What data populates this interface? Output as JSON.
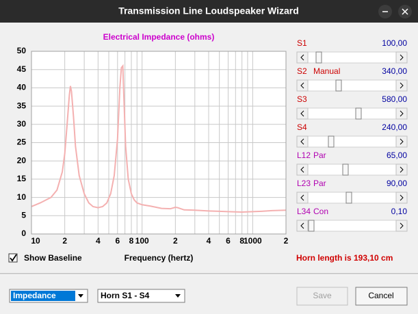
{
  "window": {
    "title": "Transmission Line Loudspeaker Wizard"
  },
  "chart_data": {
    "type": "line",
    "title": "Electrical Impedance (ohms)",
    "x_label": "Frequency (hertz)",
    "x": [
      10,
      12,
      15,
      17,
      19,
      20,
      21,
      22,
      22.5,
      23,
      24,
      25,
      27,
      30,
      33,
      36,
      40,
      44,
      48,
      52,
      56,
      60,
      63,
      65,
      67,
      68,
      71,
      75,
      80,
      85,
      90,
      100,
      120,
      150,
      180,
      200,
      210,
      240,
      300,
      400,
      500,
      600,
      800,
      1000,
      1200,
      1500,
      2000
    ],
    "values": [
      7.5,
      8.5,
      10,
      12,
      17,
      22,
      30,
      38,
      40.5,
      39,
      32,
      24,
      16,
      11,
      8.5,
      7.5,
      7.2,
      7.5,
      8.5,
      11,
      16,
      26,
      40,
      45.5,
      46,
      40,
      24,
      15,
      11,
      9.3,
      8.5,
      8,
      7.6,
      7,
      6.9,
      7.3,
      7.2,
      6.6,
      6.5,
      6.3,
      6.2,
      6.1,
      6,
      6.1,
      6.2,
      6.4,
      6.5
    ],
    "color": "#f4b0b0",
    "x_log": true,
    "xlim": [
      10,
      2000
    ],
    "ylim": [
      0,
      50
    ],
    "yticks": [
      0,
      5,
      10,
      15,
      20,
      25,
      30,
      35,
      40,
      45,
      50
    ],
    "xticks": [
      10,
      {
        "value": 20,
        "label": "2"
      },
      {
        "value": 40,
        "label": "4"
      },
      {
        "value": 60,
        "label": "6"
      },
      {
        "value": 80,
        "label": "8"
      },
      100,
      {
        "value": 200,
        "label": "2"
      },
      {
        "value": 400,
        "label": "4"
      },
      {
        "value": 600,
        "label": "6"
      },
      {
        "value": 800,
        "label": "8"
      },
      1000,
      {
        "value": 2000,
        "label": "2"
      }
    ],
    "x_minor_gridlines": [
      30,
      50,
      70,
      90,
      300,
      500,
      700,
      900
    ],
    "grid": true
  },
  "sliders": [
    {
      "name": "S1",
      "value": "100,00"
    },
    {
      "name": "S2",
      "mode": "Manual",
      "value": "340,00"
    },
    {
      "name": "S3",
      "value": "580,00"
    },
    {
      "name": "S4",
      "value": "240,00"
    },
    {
      "name": "L12",
      "mode": "Par",
      "value": "65,00"
    },
    {
      "name": "L23",
      "mode": "Par",
      "value": "90,00"
    },
    {
      "name": "L34",
      "mode": "Con",
      "value": "0,10"
    }
  ],
  "checkbox": {
    "label": "Show Baseline",
    "checked": true
  },
  "status": "Horn length is 193,10 cm",
  "dropdowns": [
    "Impedance",
    "Horn S1 - S4"
  ],
  "buttons": [
    "Save",
    "Cancel"
  ]
}
